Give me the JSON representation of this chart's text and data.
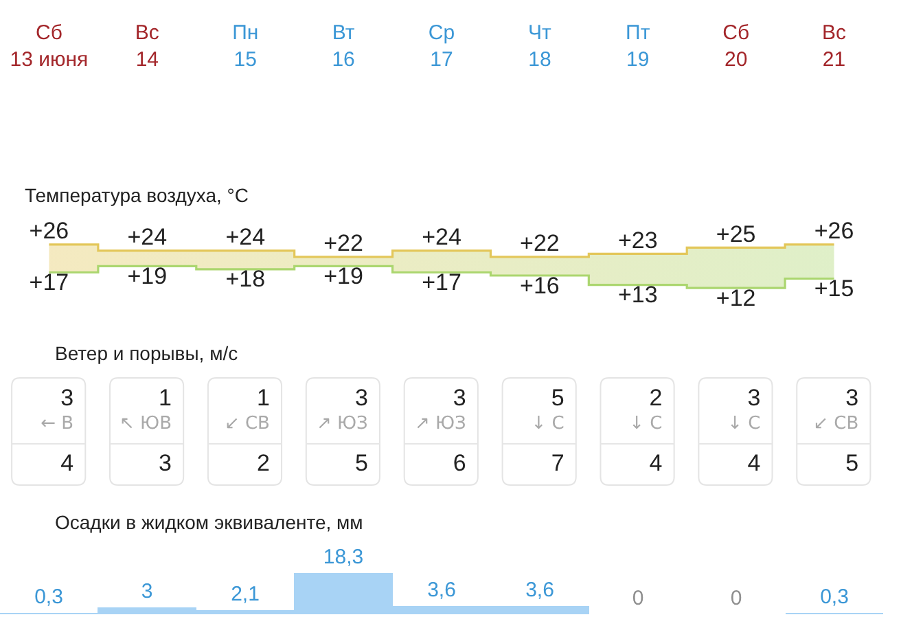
{
  "chart_data": [
    {
      "type": "step",
      "title": "Температура воздуха, °C",
      "categories": [
        "Сб 13 июня",
        "Вс 14",
        "Пн 15",
        "Вт 16",
        "Ср 17",
        "Чт 18",
        "Пт 19",
        "Сб 20",
        "Вс 21"
      ],
      "series": [
        {
          "color": "#e3c75a",
          "values": [
            26,
            24,
            24,
            22,
            24,
            22,
            23,
            25,
            26
          ],
          "value_labels": [
            "+26",
            "+24",
            "+24",
            "+22",
            "+24",
            "+22",
            "+23",
            "+25",
            "+26"
          ],
          "lower": [
            17,
            19,
            18,
            19,
            17,
            16,
            13,
            12,
            15
          ],
          "upper": [
            26,
            24,
            24,
            22,
            24,
            22,
            23,
            25,
            26
          ]
        },
        {
          "color": "#abd66f",
          "values": [
            17,
            19,
            18,
            19,
            17,
            16,
            13,
            12,
            15
          ],
          "value_labels": [
            "+17",
            "+19",
            "+18",
            "+19",
            "+17",
            "+16",
            "+13",
            "+12",
            "+15"
          ]
        }
      ],
      "tick_labels": "x"
    },
    {
      "type": "other",
      "title": "Ветер и порывы, м/с",
      "annotations": [
        "3",
        "← В",
        "4",
        "1",
        "↖ ЮВ",
        "3",
        "1",
        "↙ СВ",
        "2",
        "3",
        "↗ ЮЗ",
        "5",
        "3",
        "↗ ЮЗ",
        "6",
        "5",
        "↓ С",
        "7",
        "2",
        "↓ С",
        "4",
        "3",
        "↓ С",
        "4",
        "3",
        "↙ СВ",
        "5"
      ]
    },
    {
      "type": "bar",
      "title": "Осадки в жидком эквиваленте, мм",
      "categories": [
        null,
        null,
        null,
        null,
        null,
        null,
        null,
        null,
        null
      ],
      "values": [
        0.3,
        3,
        2.1,
        18.3,
        3.6,
        3.6,
        0,
        0,
        0.3
      ],
      "value_labels": [
        "0,3",
        "3",
        "2,1",
        "18,3",
        "3,6",
        "3,6",
        "0",
        "0",
        "0,3"
      ],
      "color": "#a8d3f5",
      "tick_labels": false
    }
  ]
}
